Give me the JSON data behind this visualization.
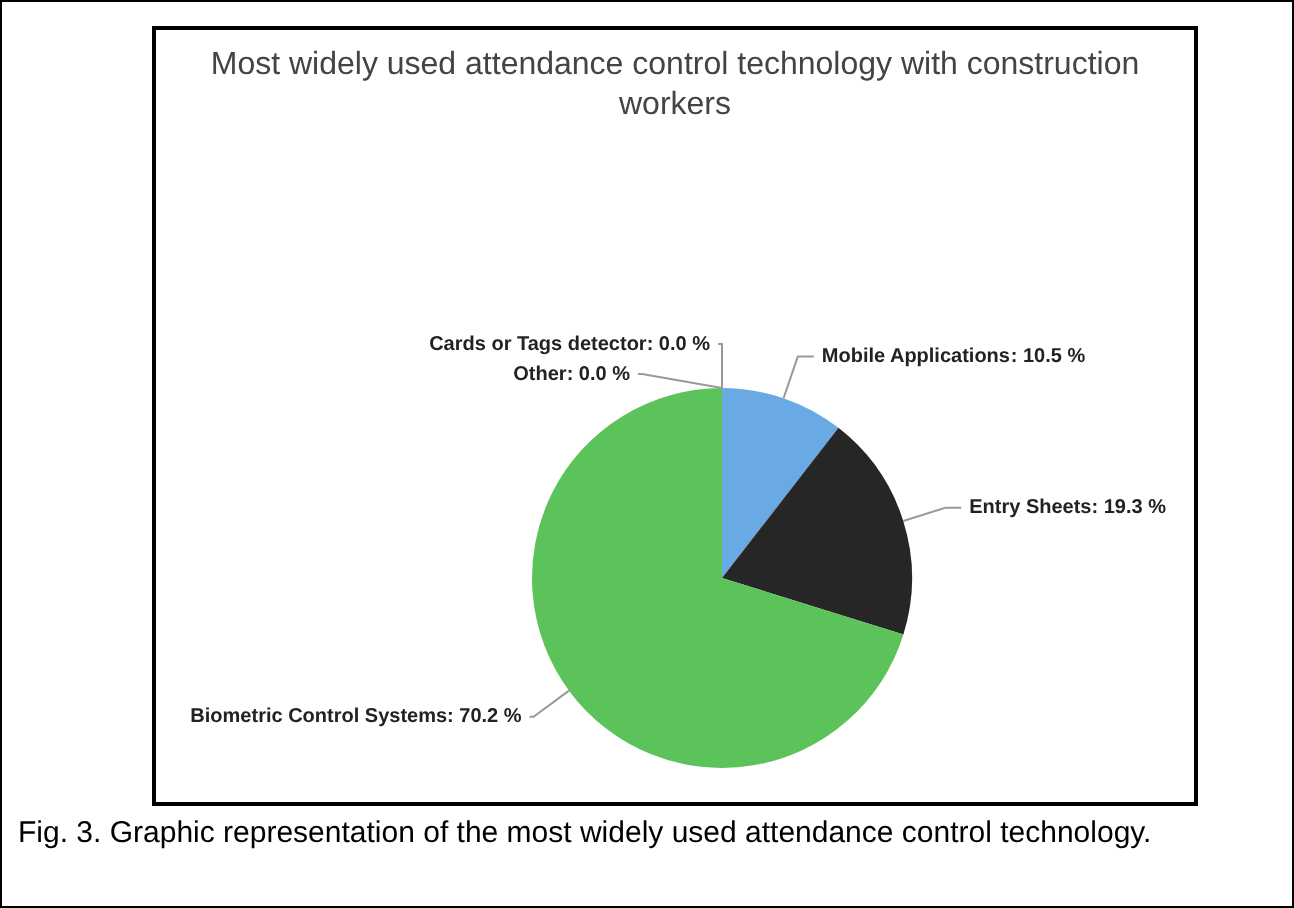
{
  "chart_data": {
    "type": "pie",
    "title": "Most widely used attendance control technology with construction workers",
    "categories": [
      "Mobile Applications",
      "Entry Sheets",
      "Biometric Control Systems",
      "Other",
      "Cards or Tags detector"
    ],
    "values": [
      10.5,
      19.3,
      70.2,
      0,
      0
    ],
    "colors": [
      "#6aaae4",
      "#262626",
      "#5cc35a",
      "#e0a030",
      "#d04040"
    ],
    "value_labels": [
      ": 10.5 %",
      ": 19.3 %",
      ": 70.2 %",
      ": 0.0 %",
      ": 0.0 %"
    ],
    "legend": false,
    "annotations": [
      "Fig. 3. Graphic representation of the most widely used attendance control technology."
    ]
  }
}
